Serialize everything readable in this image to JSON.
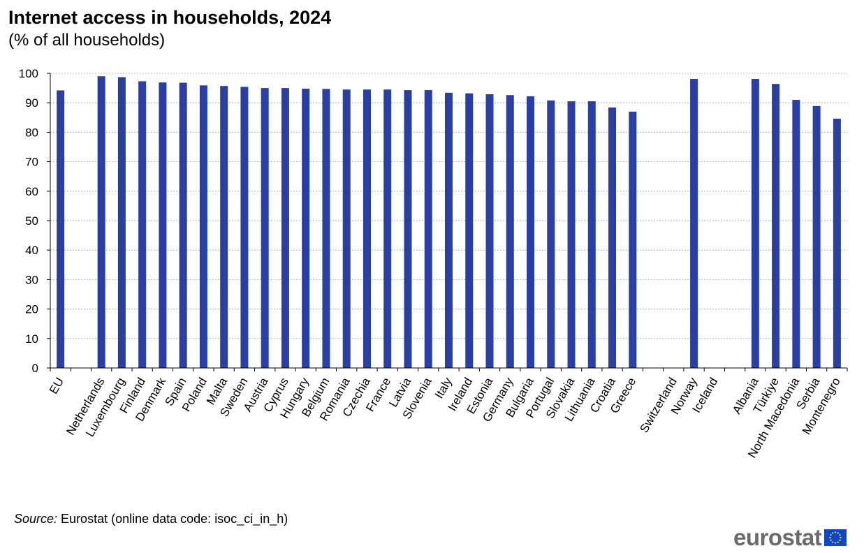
{
  "chart_data": {
    "type": "bar",
    "title": "Internet access in households, 2024",
    "subtitle": "(% of all households)",
    "categories": [
      "EU",
      "",
      "Netherlands",
      "Luxembourg",
      "Finland",
      "Denmark",
      "Spain",
      "Poland",
      "Malta",
      "Sweden",
      "Austria",
      "Cyprus",
      "Hungary",
      "Belgium",
      "Romania",
      "Czechia",
      "France",
      "Latvia",
      "Slovenia",
      "Italy",
      "Ireland",
      "Estonia",
      "Germany",
      "Bulgaria",
      "Portugal",
      "Slovakia",
      "Lithuania",
      "Croatia",
      "Greece",
      "",
      "Switzerland",
      "Norway",
      "Iceland",
      "",
      "Albania",
      "Türkiye",
      "North Macedonia",
      "Serbia",
      "Montenegro"
    ],
    "values": [
      94.2,
      null,
      99.0,
      98.7,
      97.3,
      96.9,
      96.8,
      95.9,
      95.7,
      95.4,
      95.0,
      95.0,
      94.8,
      94.7,
      94.5,
      94.5,
      94.5,
      94.3,
      94.3,
      93.4,
      93.2,
      92.9,
      92.6,
      92.2,
      90.8,
      90.5,
      90.5,
      88.4,
      87.0,
      null,
      null,
      98.1,
      null,
      null,
      98.1,
      96.4,
      91.0,
      88.9,
      84.6
    ],
    "ylim": [
      0,
      100
    ],
    "yticks": [
      "0",
      "10",
      "20",
      "30",
      "40",
      "50",
      "60",
      "70",
      "80",
      "90",
      "100"
    ],
    "grid": true,
    "bar_color": "#2a3fa3",
    "grid_color": "#b3b3b3"
  },
  "source": {
    "label": "Source:",
    "text": " Eurostat (online data code: isoc_ci_in_h)"
  },
  "logo": {
    "text": "eurostat",
    "flag_color": "#0e47cb",
    "star_color": "#ffdd00"
  }
}
